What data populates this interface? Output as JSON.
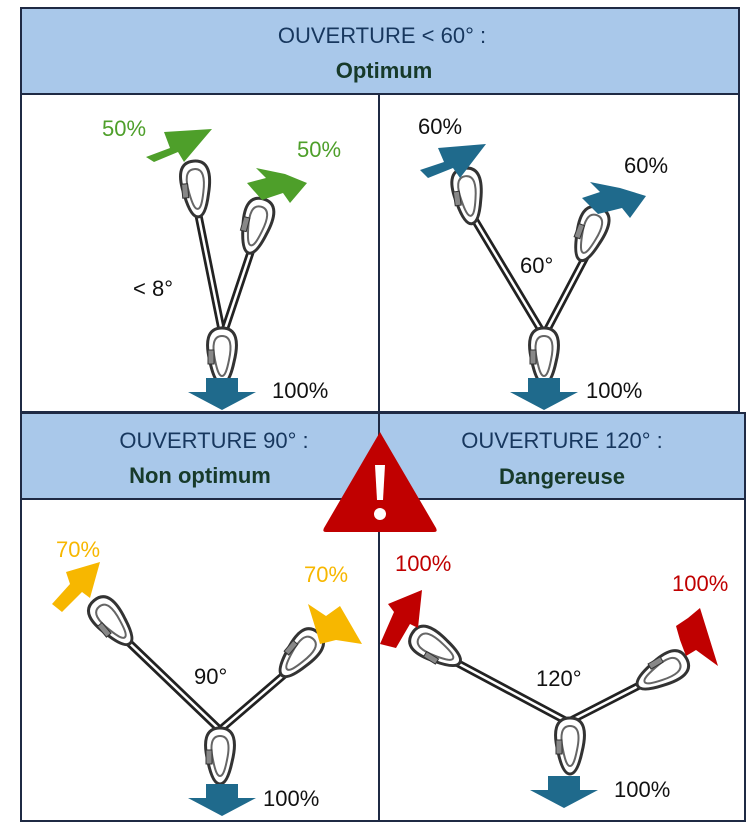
{
  "panels": {
    "top": {
      "header": {
        "line1": "OUVERTURE < 60° :",
        "line2": "Optimum"
      },
      "left": {
        "angle_label": "< 8°",
        "left_load": "50%",
        "right_load": "50%",
        "bottom_load": "100%",
        "arrow_color": "#4e9f2a"
      },
      "right": {
        "angle_label": "60°",
        "left_load": "60%",
        "right_load": "60%",
        "bottom_load": "100%",
        "arrow_color": "#1f6a8c"
      }
    },
    "bottom_left": {
      "header": {
        "line1": "OUVERTURE 90° :",
        "line2": "Non optimum"
      },
      "angle_label": "90°",
      "left_load": "70%",
      "right_load": "70%",
      "bottom_load": "100%",
      "arrow_color": "#f7b700"
    },
    "bottom_right": {
      "header": {
        "line1": "OUVERTURE 120° :",
        "line2": "Dangereuse"
      },
      "angle_label": "120°",
      "left_load": "100%",
      "right_load": "100%",
      "bottom_load": "100%",
      "arrow_color": "#c00000"
    }
  },
  "colors": {
    "header_fill": "#a9c8ea",
    "border": "#1f2a44",
    "down_arrow": "#1f6a8c",
    "warning": "#c00000",
    "load_text_black": "#111111"
  },
  "icons": {
    "warning": "warning-triangle-icon",
    "carabiner": "carabiner-icon"
  }
}
